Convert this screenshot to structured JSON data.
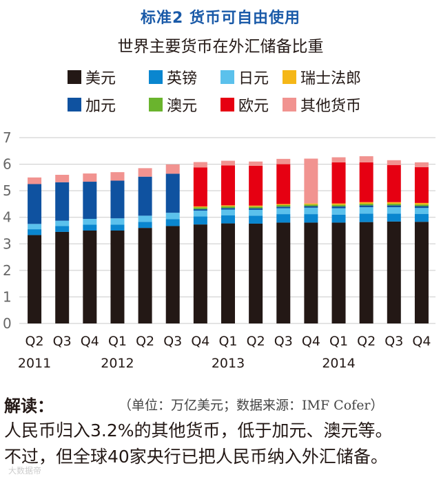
{
  "header": {
    "title": "标准2 货币可自由使用",
    "subtitle": "世界主要货币在外汇储备比重"
  },
  "chart_data": {
    "type": "bar",
    "stacked": true,
    "title": "世界主要货币在外汇储备比重",
    "ylim": [
      0,
      7
    ],
    "yticks": [
      "0",
      "1",
      "2",
      "3",
      "4",
      "5",
      "6",
      "7"
    ],
    "grid": true,
    "categories": [
      "Q2",
      "Q3",
      "Q4",
      "Q1",
      "Q2",
      "Q3",
      "Q4",
      "Q1",
      "Q2",
      "Q3",
      "Q4",
      "Q1",
      "Q2",
      "Q3",
      "Q4"
    ],
    "year_labels": [
      {
        "label": "2011",
        "index": 0
      },
      {
        "label": "2012",
        "index": 3
      },
      {
        "label": "2013",
        "index": 7
      },
      {
        "label": "2014",
        "index": 11
      }
    ],
    "series": [
      {
        "name": "美元",
        "color": "#231815",
        "values": [
          3.33,
          3.45,
          3.5,
          3.5,
          3.6,
          3.67,
          3.73,
          3.77,
          3.76,
          3.8,
          3.8,
          3.8,
          3.82,
          3.84,
          3.83
        ]
      },
      {
        "name": "英镑",
        "color": "#0a86cf",
        "values": [
          0.22,
          0.22,
          0.22,
          0.22,
          0.23,
          0.26,
          0.3,
          0.3,
          0.3,
          0.32,
          0.32,
          0.3,
          0.32,
          0.3,
          0.3
        ]
      },
      {
        "name": "日元",
        "color": "#5bc1ec",
        "values": [
          0.2,
          0.2,
          0.22,
          0.24,
          0.23,
          0.24,
          0.22,
          0.22,
          0.22,
          0.22,
          0.24,
          0.24,
          0.24,
          0.24,
          0.22
        ]
      },
      {
        "name": "加元",
        "color": "#0f52a0",
        "values": [
          1.5,
          1.45,
          1.4,
          1.42,
          1.47,
          1.47,
          0.06,
          0.06,
          0.06,
          0.06,
          0.06,
          0.07,
          0.07,
          0.07,
          0.07
        ]
      },
      {
        "name": "澳元",
        "color": "#6ab42d",
        "values": [
          0.0,
          0.0,
          0.0,
          0.0,
          0.0,
          0.0,
          0.06,
          0.06,
          0.06,
          0.06,
          0.06,
          0.06,
          0.06,
          0.06,
          0.06
        ]
      },
      {
        "name": "瑞士法郎",
        "color": "#f5b717",
        "values": [
          0.0,
          0.0,
          0.0,
          0.0,
          0.0,
          0.0,
          0.04,
          0.04,
          0.04,
          0.04,
          0.04,
          0.05,
          0.06,
          0.06,
          0.06
        ]
      },
      {
        "name": "欧元",
        "color": "#e60012",
        "values": [
          0.0,
          0.0,
          0.0,
          0.0,
          0.0,
          0.0,
          1.47,
          1.5,
          1.5,
          1.5,
          0.0,
          1.55,
          1.5,
          1.4,
          1.35
        ]
      },
      {
        "name": "其他货币",
        "color": "#f19390",
        "values": [
          0.25,
          0.28,
          0.31,
          0.32,
          0.32,
          0.35,
          0.2,
          0.18,
          0.16,
          0.2,
          1.69,
          0.19,
          0.23,
          0.18,
          0.18
        ]
      }
    ]
  },
  "legend": [
    {
      "label": "美元",
      "color": "#231815"
    },
    {
      "label": "英镑",
      "color": "#0a86cf"
    },
    {
      "label": "日元",
      "color": "#5bc1ec"
    },
    {
      "label": "瑞士法郎",
      "color": "#f5b717"
    },
    {
      "label": "加元",
      "color": "#0f52a0"
    },
    {
      "label": "澳元",
      "color": "#6ab42d"
    },
    {
      "label": "欧元",
      "color": "#e60012"
    },
    {
      "label": "其他货币",
      "color": "#f19390"
    }
  ],
  "explanation": {
    "heading": "解读：",
    "source": "（单位：万亿美元；数据来源：IMF Cofer）",
    "line1": "人民币归入3.2%的其他货币，低于加元、澳元等。",
    "line2": "不过，但全球40家央行已把人民币纳入外汇储备。"
  },
  "watermark": "大数据帝"
}
